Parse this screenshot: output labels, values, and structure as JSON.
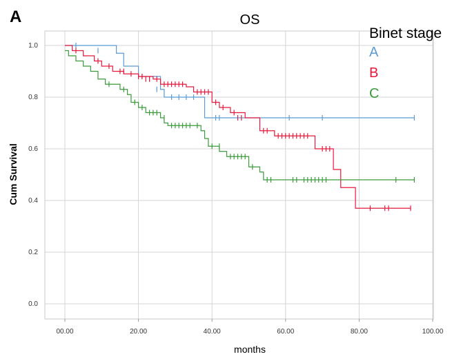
{
  "panel_label": "A",
  "chart_data": {
    "type": "line",
    "subtype": "kaplan-meier",
    "title": "OS",
    "xlabel": "months",
    "ylabel": "Cum Survival",
    "xlim": [
      -5,
      100
    ],
    "ylim": [
      0,
      1.0
    ],
    "x_ticks": [
      0,
      20,
      40,
      60,
      80,
      100
    ],
    "x_tick_labels": [
      "00.00",
      "20.00",
      "40.00",
      "60.00",
      "80.00",
      "100.00"
    ],
    "y_ticks": [
      0,
      0.2,
      0.4,
      0.6,
      0.8,
      1.0
    ],
    "y_tick_labels": [
      "0.0",
      "0.2",
      "0.4",
      "0.6",
      "0.8",
      "1.0"
    ],
    "grid": true,
    "legend": {
      "title": "Binet stage",
      "position": "top-right"
    },
    "series": [
      {
        "name": "A",
        "color": "#5b9bd5",
        "steps": [
          [
            0,
            1.0
          ],
          [
            14,
            0.97
          ],
          [
            16,
            0.92
          ],
          [
            20,
            0.88
          ],
          [
            26,
            0.83
          ],
          [
            27,
            0.8
          ],
          [
            38,
            0.72
          ],
          [
            95,
            0.72
          ]
        ],
        "censored": [
          [
            3,
            1.0
          ],
          [
            9,
            0.98
          ],
          [
            21,
            0.88
          ],
          [
            23,
            0.87
          ],
          [
            25,
            0.83
          ],
          [
            29,
            0.8
          ],
          [
            31,
            0.8
          ],
          [
            33,
            0.8
          ],
          [
            35,
            0.8
          ],
          [
            41,
            0.72
          ],
          [
            42,
            0.72
          ],
          [
            61,
            0.72
          ],
          [
            70,
            0.72
          ],
          [
            95,
            0.72
          ]
        ]
      },
      {
        "name": "B",
        "color": "#e8173a",
        "steps": [
          [
            0,
            1.0
          ],
          [
            2,
            0.98
          ],
          [
            5,
            0.96
          ],
          [
            8,
            0.94
          ],
          [
            10,
            0.92
          ],
          [
            13,
            0.9
          ],
          [
            16,
            0.89
          ],
          [
            20,
            0.88
          ],
          [
            24,
            0.87
          ],
          [
            26,
            0.85
          ],
          [
            33,
            0.84
          ],
          [
            35,
            0.82
          ],
          [
            40,
            0.78
          ],
          [
            42,
            0.76
          ],
          [
            45,
            0.74
          ],
          [
            49,
            0.72
          ],
          [
            53,
            0.67
          ],
          [
            57,
            0.65
          ],
          [
            68,
            0.6
          ],
          [
            73,
            0.52
          ],
          [
            75,
            0.45
          ],
          [
            79,
            0.37
          ],
          [
            94,
            0.37
          ]
        ],
        "censored": [
          [
            3,
            0.98
          ],
          [
            9,
            0.94
          ],
          [
            12,
            0.92
          ],
          [
            15,
            0.9
          ],
          [
            16,
            0.9
          ],
          [
            18,
            0.89
          ],
          [
            20,
            0.88
          ],
          [
            21,
            0.88
          ],
          [
            22,
            0.87
          ],
          [
            23,
            0.87
          ],
          [
            25,
            0.87
          ],
          [
            27,
            0.85
          ],
          [
            28,
            0.85
          ],
          [
            29,
            0.85
          ],
          [
            30,
            0.85
          ],
          [
            31,
            0.85
          ],
          [
            32,
            0.85
          ],
          [
            36,
            0.82
          ],
          [
            37,
            0.82
          ],
          [
            38,
            0.82
          ],
          [
            39,
            0.82
          ],
          [
            41,
            0.78
          ],
          [
            43,
            0.76
          ],
          [
            46,
            0.74
          ],
          [
            47,
            0.72
          ],
          [
            48,
            0.72
          ],
          [
            54,
            0.67
          ],
          [
            55,
            0.67
          ],
          [
            58,
            0.65
          ],
          [
            59,
            0.65
          ],
          [
            60,
            0.65
          ],
          [
            61,
            0.65
          ],
          [
            62,
            0.65
          ],
          [
            63,
            0.65
          ],
          [
            64,
            0.65
          ],
          [
            65,
            0.65
          ],
          [
            66,
            0.65
          ],
          [
            70,
            0.6
          ],
          [
            71,
            0.6
          ],
          [
            72,
            0.6
          ],
          [
            83,
            0.37
          ],
          [
            87,
            0.37
          ],
          [
            88,
            0.37
          ],
          [
            94,
            0.37
          ]
        ]
      },
      {
        "name": "C",
        "color": "#3a9a3a",
        "steps": [
          [
            0,
            0.98
          ],
          [
            1,
            0.96
          ],
          [
            3,
            0.94
          ],
          [
            5,
            0.92
          ],
          [
            7,
            0.9
          ],
          [
            9,
            0.87
          ],
          [
            11,
            0.85
          ],
          [
            15,
            0.83
          ],
          [
            17,
            0.81
          ],
          [
            18,
            0.78
          ],
          [
            20,
            0.76
          ],
          [
            22,
            0.74
          ],
          [
            26,
            0.72
          ],
          [
            27,
            0.7
          ],
          [
            28,
            0.69
          ],
          [
            37,
            0.67
          ],
          [
            38,
            0.64
          ],
          [
            39,
            0.61
          ],
          [
            42,
            0.59
          ],
          [
            44,
            0.57
          ],
          [
            50,
            0.53
          ],
          [
            53,
            0.51
          ],
          [
            54,
            0.48
          ],
          [
            95,
            0.48
          ]
        ],
        "censored": [
          [
            12,
            0.85
          ],
          [
            16,
            0.83
          ],
          [
            19,
            0.78
          ],
          [
            21,
            0.76
          ],
          [
            23,
            0.74
          ],
          [
            24,
            0.74
          ],
          [
            25,
            0.74
          ],
          [
            27,
            0.72
          ],
          [
            29,
            0.69
          ],
          [
            30,
            0.69
          ],
          [
            31,
            0.69
          ],
          [
            32,
            0.69
          ],
          [
            33,
            0.69
          ],
          [
            34,
            0.69
          ],
          [
            36,
            0.69
          ],
          [
            40,
            0.61
          ],
          [
            42,
            0.61
          ],
          [
            45,
            0.57
          ],
          [
            46,
            0.57
          ],
          [
            47,
            0.57
          ],
          [
            48,
            0.57
          ],
          [
            49,
            0.57
          ],
          [
            51,
            0.53
          ],
          [
            55,
            0.48
          ],
          [
            56,
            0.48
          ],
          [
            62,
            0.48
          ],
          [
            63,
            0.48
          ],
          [
            65,
            0.48
          ],
          [
            66,
            0.48
          ],
          [
            67,
            0.48
          ],
          [
            68,
            0.48
          ],
          [
            69,
            0.48
          ],
          [
            70,
            0.48
          ],
          [
            71,
            0.48
          ],
          [
            90,
            0.48
          ],
          [
            95,
            0.48
          ]
        ]
      }
    ]
  }
}
